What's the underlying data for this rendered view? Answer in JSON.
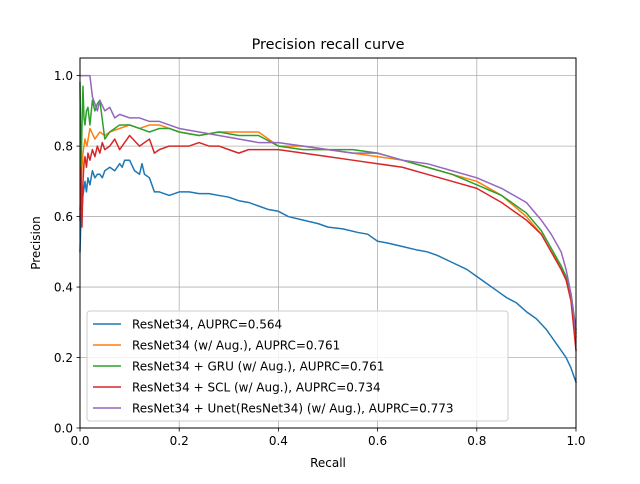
{
  "chart_data": {
    "type": "line",
    "title": "Precision recall curve",
    "xlabel": "Recall",
    "ylabel": "Precision",
    "xlim": [
      0.0,
      1.0
    ],
    "ylim": [
      0.0,
      1.05
    ],
    "xticks": [
      0.0,
      0.2,
      0.4,
      0.6,
      0.8,
      1.0
    ],
    "yticks": [
      0.0,
      0.2,
      0.4,
      0.6,
      0.8,
      1.0
    ],
    "xtick_labels": [
      "0.0",
      "0.2",
      "0.4",
      "0.6",
      "0.8",
      "1.0"
    ],
    "ytick_labels": [
      "0.0",
      "0.2",
      "0.4",
      "0.6",
      "0.8",
      "1.0"
    ],
    "grid": true,
    "legend_position": "lower-left",
    "series": [
      {
        "name": "ResNet34, AUPRC=0.564",
        "color": "#1f77b4",
        "x": [
          0.0,
          0.002,
          0.004,
          0.006,
          0.008,
          0.01,
          0.013,
          0.016,
          0.02,
          0.025,
          0.03,
          0.035,
          0.04,
          0.045,
          0.05,
          0.06,
          0.07,
          0.08,
          0.085,
          0.09,
          0.1,
          0.11,
          0.12,
          0.125,
          0.13,
          0.14,
          0.15,
          0.16,
          0.18,
          0.2,
          0.22,
          0.24,
          0.26,
          0.28,
          0.3,
          0.32,
          0.34,
          0.36,
          0.38,
          0.4,
          0.42,
          0.45,
          0.48,
          0.5,
          0.53,
          0.56,
          0.58,
          0.6,
          0.62,
          0.65,
          0.68,
          0.7,
          0.72,
          0.75,
          0.78,
          0.8,
          0.82,
          0.84,
          0.86,
          0.88,
          0.9,
          0.92,
          0.94,
          0.95,
          0.96,
          0.97,
          0.98,
          0.99,
          1.0
        ],
        "y": [
          0.5,
          0.6,
          0.62,
          0.66,
          0.68,
          0.7,
          0.67,
          0.71,
          0.69,
          0.73,
          0.71,
          0.72,
          0.72,
          0.71,
          0.73,
          0.74,
          0.73,
          0.75,
          0.74,
          0.76,
          0.76,
          0.73,
          0.72,
          0.75,
          0.72,
          0.71,
          0.67,
          0.67,
          0.66,
          0.67,
          0.67,
          0.665,
          0.665,
          0.66,
          0.655,
          0.645,
          0.64,
          0.63,
          0.62,
          0.615,
          0.6,
          0.59,
          0.58,
          0.57,
          0.565,
          0.555,
          0.55,
          0.53,
          0.525,
          0.515,
          0.505,
          0.5,
          0.49,
          0.47,
          0.45,
          0.43,
          0.41,
          0.39,
          0.37,
          0.355,
          0.33,
          0.31,
          0.28,
          0.26,
          0.24,
          0.22,
          0.2,
          0.17,
          0.13
        ]
      },
      {
        "name": "ResNet34 (w/ Aug.), AUPRC=0.761",
        "color": "#ff7f0e",
        "x": [
          0.0,
          0.003,
          0.006,
          0.01,
          0.014,
          0.02,
          0.03,
          0.04,
          0.05,
          0.06,
          0.08,
          0.1,
          0.12,
          0.14,
          0.16,
          0.18,
          0.2,
          0.24,
          0.28,
          0.32,
          0.36,
          0.4,
          0.45,
          0.5,
          0.55,
          0.6,
          0.65,
          0.7,
          0.75,
          0.8,
          0.85,
          0.9,
          0.93,
          0.95,
          0.97,
          0.98,
          0.99,
          1.0
        ],
        "y": [
          0.62,
          0.72,
          0.78,
          0.82,
          0.8,
          0.85,
          0.82,
          0.84,
          0.83,
          0.84,
          0.85,
          0.86,
          0.85,
          0.86,
          0.86,
          0.85,
          0.84,
          0.83,
          0.84,
          0.84,
          0.84,
          0.8,
          0.8,
          0.79,
          0.78,
          0.77,
          0.76,
          0.74,
          0.72,
          0.7,
          0.66,
          0.6,
          0.55,
          0.5,
          0.46,
          0.42,
          0.38,
          0.26
        ]
      },
      {
        "name": "ResNet34 + GRU (w/ Aug.), AUPRC=0.761",
        "color": "#2ca02c",
        "x": [
          0.0,
          0.002,
          0.004,
          0.006,
          0.008,
          0.01,
          0.013,
          0.016,
          0.02,
          0.025,
          0.03,
          0.035,
          0.04,
          0.05,
          0.06,
          0.08,
          0.1,
          0.12,
          0.14,
          0.16,
          0.18,
          0.2,
          0.24,
          0.28,
          0.32,
          0.36,
          0.4,
          0.45,
          0.5,
          0.55,
          0.6,
          0.65,
          0.7,
          0.75,
          0.8,
          0.85,
          0.9,
          0.93,
          0.95,
          0.97,
          0.98,
          0.99,
          1.0
        ],
        "y": [
          0.98,
          0.72,
          0.86,
          0.97,
          0.88,
          0.86,
          0.9,
          0.91,
          0.86,
          0.93,
          0.9,
          0.92,
          0.93,
          0.82,
          0.84,
          0.86,
          0.86,
          0.85,
          0.84,
          0.85,
          0.85,
          0.84,
          0.83,
          0.84,
          0.83,
          0.83,
          0.8,
          0.79,
          0.79,
          0.79,
          0.78,
          0.76,
          0.74,
          0.72,
          0.69,
          0.66,
          0.61,
          0.56,
          0.51,
          0.46,
          0.43,
          0.38,
          0.28
        ]
      },
      {
        "name": "ResNet34 + SCL (w/ Aug.), AUPRC=0.734",
        "color": "#d62728",
        "x": [
          0.0,
          0.002,
          0.004,
          0.006,
          0.008,
          0.01,
          0.013,
          0.016,
          0.02,
          0.025,
          0.03,
          0.035,
          0.04,
          0.045,
          0.05,
          0.06,
          0.07,
          0.08,
          0.09,
          0.1,
          0.12,
          0.14,
          0.15,
          0.16,
          0.18,
          0.2,
          0.22,
          0.24,
          0.26,
          0.28,
          0.3,
          0.32,
          0.34,
          0.36,
          0.4,
          0.45,
          0.5,
          0.55,
          0.6,
          0.65,
          0.7,
          0.75,
          0.8,
          0.85,
          0.9,
          0.93,
          0.95,
          0.97,
          0.98,
          0.99,
          1.0
        ],
        "y": [
          0.59,
          0.74,
          0.57,
          0.7,
          0.75,
          0.77,
          0.74,
          0.78,
          0.76,
          0.79,
          0.77,
          0.8,
          0.78,
          0.81,
          0.79,
          0.8,
          0.82,
          0.79,
          0.81,
          0.83,
          0.8,
          0.82,
          0.78,
          0.79,
          0.8,
          0.8,
          0.8,
          0.81,
          0.8,
          0.8,
          0.79,
          0.78,
          0.79,
          0.79,
          0.79,
          0.78,
          0.77,
          0.76,
          0.75,
          0.74,
          0.72,
          0.7,
          0.68,
          0.64,
          0.59,
          0.55,
          0.5,
          0.45,
          0.42,
          0.36,
          0.22
        ]
      },
      {
        "name": "ResNet34 + Unet(ResNet34) (w/ Aug.), AUPRC=0.773",
        "color": "#9467bd",
        "x": [
          0.0,
          0.003,
          0.006,
          0.01,
          0.02,
          0.025,
          0.03,
          0.035,
          0.04,
          0.05,
          0.06,
          0.07,
          0.08,
          0.1,
          0.12,
          0.14,
          0.16,
          0.18,
          0.2,
          0.24,
          0.28,
          0.32,
          0.36,
          0.4,
          0.45,
          0.5,
          0.55,
          0.6,
          0.65,
          0.7,
          0.75,
          0.8,
          0.85,
          0.9,
          0.93,
          0.95,
          0.97,
          0.98,
          0.99,
          1.0
        ],
        "y": [
          1.0,
          1.0,
          1.0,
          1.0,
          1.0,
          0.94,
          0.92,
          0.9,
          0.93,
          0.9,
          0.91,
          0.88,
          0.89,
          0.88,
          0.88,
          0.87,
          0.87,
          0.86,
          0.85,
          0.84,
          0.83,
          0.82,
          0.81,
          0.81,
          0.8,
          0.79,
          0.78,
          0.78,
          0.76,
          0.75,
          0.73,
          0.71,
          0.68,
          0.64,
          0.59,
          0.55,
          0.5,
          0.45,
          0.38,
          0.27
        ]
      }
    ]
  }
}
